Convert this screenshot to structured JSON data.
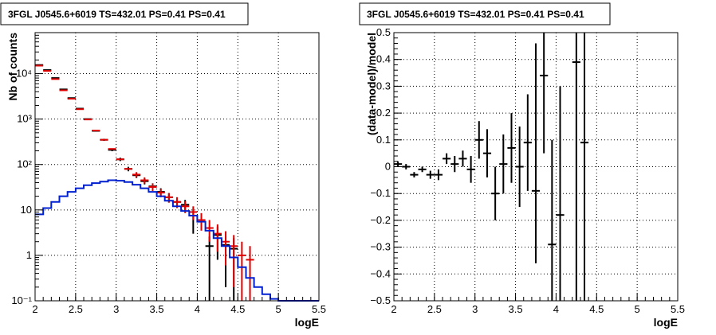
{
  "colors": {
    "data": "#000000",
    "model": "#0020d0",
    "model_pts": "#e00000",
    "frame": "#000000",
    "grid": "#000000"
  },
  "chart_data": [
    {
      "type": "line",
      "title": "3FGL J0545.6+6019 TS=432.01 PS=0.41 PS=0.41",
      "xlabel": "logE",
      "ylabel": "Nb of counts",
      "xlim": [
        2,
        5.5
      ],
      "ylim": [
        0.1,
        80000
      ],
      "yscale": "log",
      "grid": true,
      "x_ticks": [
        2,
        2.5,
        3,
        3.5,
        4,
        4.5,
        5,
        5.5
      ],
      "x_tick_labels": [
        "2",
        "2.5",
        "3",
        "3.5",
        "4",
        "4.5",
        "5",
        "5.5"
      ],
      "y_ticks": [
        0.1,
        1,
        10,
        100,
        1000,
        10000
      ],
      "y_tick_labels": [
        "10⁻¹",
        "1",
        "10",
        "10²",
        "10³",
        "10⁴"
      ],
      "bin_width": 0.1,
      "series": [
        {
          "role": "counts",
          "x": [
            2.05,
            2.15,
            2.25,
            2.35,
            2.45,
            2.55,
            2.65,
            2.75,
            2.85,
            2.95,
            3.05,
            3.15,
            3.25,
            3.35,
            3.45,
            3.55,
            3.65,
            3.75,
            3.85,
            3.95,
            4.15,
            4.25,
            4.35,
            4.45
          ],
          "y": [
            15500,
            12000,
            8000,
            4500,
            2900,
            1700,
            1000,
            550,
            350,
            210,
            130,
            80,
            58,
            43,
            33,
            25,
            19,
            15,
            13,
            7.5,
            1.6,
            2.8,
            1.7,
            1.4
          ],
          "yerr_low": [
            0,
            0,
            0,
            0,
            0,
            0,
            0,
            0,
            18,
            14,
            11,
            9,
            7.5,
            6.5,
            5.5,
            5,
            4.5,
            4,
            3.6,
            4.5,
            1.5,
            2.0,
            1.5,
            1.3
          ],
          "yerr_high": [
            0,
            0,
            0,
            0,
            0,
            0,
            0,
            0,
            18,
            14,
            11,
            9,
            7.5,
            6.5,
            5.5,
            5,
            4.5,
            4,
            3.6,
            3.0,
            1.0,
            1.5,
            1.0,
            1.0
          ]
        },
        {
          "role": "model_points",
          "x": [
            2.05,
            2.15,
            2.25,
            2.35,
            2.45,
            2.55,
            2.65,
            2.75,
            2.85,
            2.95,
            3.05,
            3.15,
            3.25,
            3.35,
            3.45,
            3.55,
            3.65,
            3.75,
            3.85,
            3.95,
            4.05,
            4.15,
            4.25,
            4.35,
            4.45,
            4.55,
            4.65
          ],
          "y": [
            15000,
            11500,
            7600,
            4300,
            2800,
            1650,
            980,
            560,
            350,
            220,
            130,
            80,
            60,
            45,
            32,
            24,
            19,
            15,
            12,
            9,
            6,
            4,
            3,
            2,
            1.6,
            1.0,
            0.8
          ],
          "yerr_low": [
            0,
            0,
            0,
            0,
            0,
            0,
            0,
            0,
            0,
            0,
            0,
            0,
            8,
            7,
            6,
            5,
            4.5,
            4,
            3.5,
            3,
            2.5,
            2,
            1.8,
            1.4,
            1.4,
            0.9,
            0.8
          ],
          "yerr_high": [
            0,
            0,
            0,
            0,
            0,
            0,
            0,
            0,
            0,
            0,
            0,
            0,
            8,
            7,
            6,
            5,
            4.5,
            4,
            3.5,
            3,
            2.5,
            2,
            1.8,
            1.4,
            1.2,
            1.0,
            0.8
          ]
        },
        {
          "role": "model_step",
          "x": [
            2.0,
            2.1,
            2.2,
            2.3,
            2.4,
            2.5,
            2.6,
            2.7,
            2.8,
            2.9,
            3.0,
            3.1,
            3.2,
            3.3,
            3.4,
            3.5,
            3.6,
            3.7,
            3.8,
            3.9,
            4.0,
            4.1,
            4.2,
            4.3,
            4.4,
            4.5,
            4.6,
            4.7,
            4.8,
            4.9,
            5.0,
            5.1,
            5.2,
            5.3,
            5.4
          ],
          "y": [
            8,
            11,
            15,
            20,
            25,
            30,
            35,
            39,
            42,
            45,
            44,
            41,
            36,
            30,
            25,
            20,
            16,
            12,
            9.5,
            7.5,
            5.5,
            3.5,
            2.4,
            1.6,
            0.9,
            0.55,
            0.32,
            0.2,
            0.14,
            0.11,
            0.1,
            0.1,
            0.1,
            0.1,
            0.1
          ]
        }
      ]
    },
    {
      "type": "scatter",
      "title": "3FGL J0545.6+6019 TS=432.01 PS=0.41 PS=0.41",
      "xlabel": "logE",
      "ylabel": "(data-model)/model",
      "xlim": [
        2,
        5.5
      ],
      "ylim": [
        -0.5,
        0.5
      ],
      "grid": true,
      "x_ticks": [
        2,
        2.5,
        3,
        3.5,
        4,
        4.5,
        5,
        5.5
      ],
      "x_tick_labels": [
        "2",
        "2.5",
        "3",
        "3.5",
        "4",
        "4.5",
        "5",
        "5.5"
      ],
      "y_ticks": [
        -0.5,
        -0.4,
        -0.3,
        -0.2,
        -0.1,
        0,
        0.1,
        0.2,
        0.3,
        0.4,
        0.5
      ],
      "y_tick_labels": [
        "−0.5",
        "−0.4",
        "−0.3",
        "−0.2",
        "−0.1",
        "0",
        "0.1",
        "0.2",
        "0.3",
        "0.4",
        "0.5"
      ],
      "bin_width": 0.1,
      "series": [
        {
          "role": "residuals",
          "x": [
            2.05,
            2.15,
            2.25,
            2.35,
            2.45,
            2.55,
            2.65,
            2.75,
            2.85,
            2.95,
            3.05,
            3.15,
            3.25,
            3.35,
            3.45,
            3.55,
            3.65,
            3.75,
            3.85,
            3.95,
            4.05,
            4.25,
            4.35
          ],
          "y": [
            0.01,
            0.0,
            -0.03,
            -0.01,
            -0.03,
            -0.03,
            0.03,
            0.01,
            0.03,
            -0.01,
            0.1,
            0.05,
            -0.1,
            0.01,
            0.07,
            0.0,
            0.09,
            -0.09,
            0.34,
            -0.29,
            -0.18,
            0.39,
            0.09
          ],
          "yerr_low": [
            0.01,
            0.01,
            0.01,
            0.01,
            0.015,
            0.02,
            0.02,
            0.03,
            0.03,
            0.05,
            0.07,
            0.09,
            0.1,
            0.11,
            0.13,
            0.15,
            0.18,
            0.27,
            0.29,
            0.21,
            0.32,
            0.89,
            0.59
          ],
          "yerr_high": [
            0.01,
            0.01,
            0.01,
            0.01,
            0.015,
            0.02,
            0.02,
            0.03,
            0.03,
            0.05,
            0.07,
            0.09,
            0.1,
            0.11,
            0.13,
            0.15,
            0.18,
            0.55,
            0.16,
            0.39,
            0.48,
            0.11,
            0.41
          ]
        }
      ]
    }
  ]
}
